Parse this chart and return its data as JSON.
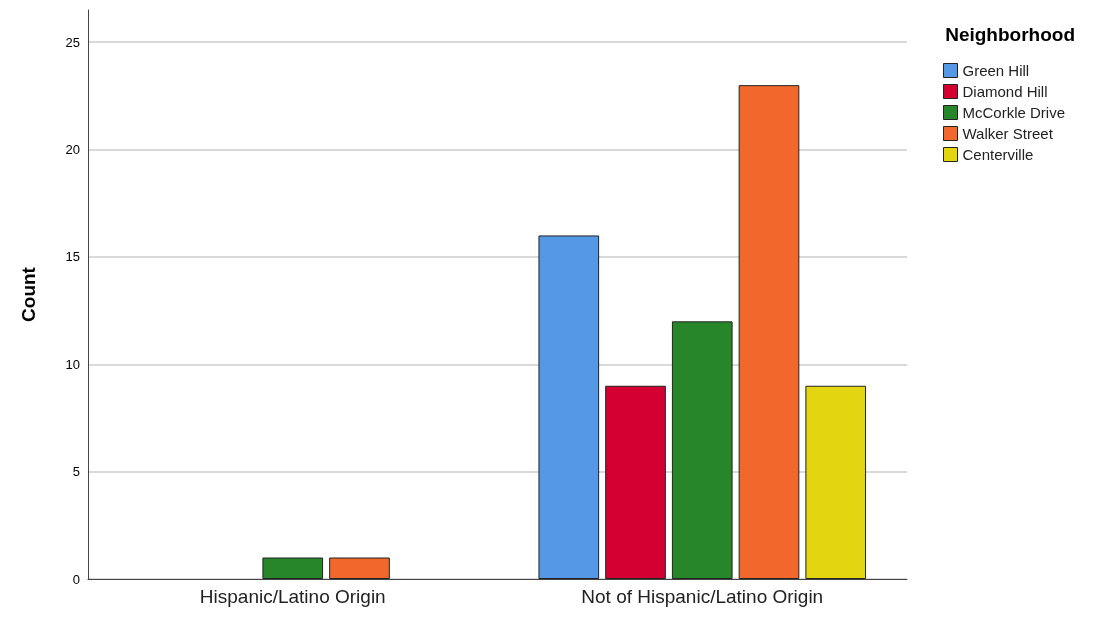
{
  "chart_data": {
    "type": "bar",
    "ylabel": "Count",
    "legend_title": "Neighborhood",
    "categories": [
      "Hispanic/Latino Origin",
      "Not of Hispanic/Latino Origin"
    ],
    "series": [
      {
        "name": "Green Hill",
        "color": "#5598e3",
        "values": [
          null,
          16
        ]
      },
      {
        "name": "Diamond Hill",
        "color": "#d50032",
        "values": [
          null,
          9
        ]
      },
      {
        "name": "McCorkle Drive",
        "color": "#27862a",
        "values": [
          1,
          12
        ]
      },
      {
        "name": "Walker Street",
        "color": "#f2682c",
        "values": [
          1,
          23
        ]
      },
      {
        "name": "Centerville",
        "color": "#e3d50f",
        "values": [
          null,
          9
        ]
      }
    ],
    "ylim": [
      0,
      26.5
    ],
    "yticks": [
      0,
      5,
      10,
      15,
      20,
      25
    ],
    "grid": "y",
    "legend": "top right"
  }
}
